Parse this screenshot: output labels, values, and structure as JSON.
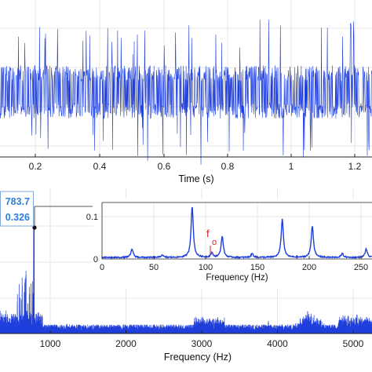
{
  "colors": {
    "signal": "#1f3fdc",
    "annotation": "#d62020",
    "datatip": "#2f7fd6",
    "grid": "#e6e6e6"
  },
  "chart_data": [
    {
      "type": "line",
      "subject": "time-domain signal",
      "xlabel": "Time (s)",
      "ylabel": "",
      "xlim": [
        0.0,
        1.3
      ],
      "xticks": [
        "0.2",
        "0.4",
        "0.6",
        "0.8",
        "1",
        "1.2"
      ],
      "grid": true,
      "series": [
        {
          "envelope": "noise-like, roughly constant amplitude across whole time span"
        }
      ]
    },
    {
      "type": "line",
      "subject": "amplitude spectrum",
      "xlabel": "Frequency (Hz)",
      "xlim": [
        0,
        5300
      ],
      "xticks": [
        "1000",
        "2000",
        "3000",
        "4000",
        "5000"
      ],
      "grid": true,
      "datatip": {
        "x": "783.7",
        "y": "0.326"
      },
      "peaks": [
        {
          "x": 60,
          "y": 0.04
        },
        {
          "x": 300,
          "y": 0.05
        },
        {
          "x": 680,
          "y": 0.2
        },
        {
          "x": 725,
          "y": 0.15
        },
        {
          "x": 783.7,
          "y": 0.326
        },
        {
          "x": 1220,
          "y": 0.03
        },
        {
          "x": 2200,
          "y": 0.03
        },
        {
          "x": 3100,
          "y": 0.05
        },
        {
          "x": 3880,
          "y": 0.04
        },
        {
          "x": 4400,
          "y": 0.07
        },
        {
          "x": 5050,
          "y": 0.06
        }
      ]
    },
    {
      "type": "line",
      "subject": "inset zoom of spectrum",
      "xlabel": "Frequency (Hz)",
      "xlim": [
        0,
        260
      ],
      "ylim": [
        0,
        0.13
      ],
      "xticks": [
        "0",
        "50",
        "100",
        "150",
        "200",
        "250"
      ],
      "yticks": [
        "0",
        "0.1"
      ],
      "annotation": {
        "label": "f",
        "subscript": "o",
        "x": 107
      },
      "peaks": [
        {
          "x": 29,
          "y": 0.02
        },
        {
          "x": 58,
          "y": 0.006
        },
        {
          "x": 87,
          "y": 0.12
        },
        {
          "x": 106,
          "y": 0.01
        },
        {
          "x": 116,
          "y": 0.05
        },
        {
          "x": 145,
          "y": 0.009
        },
        {
          "x": 174,
          "y": 0.09
        },
        {
          "x": 203,
          "y": 0.075
        },
        {
          "x": 232,
          "y": 0.009
        },
        {
          "x": 255,
          "y": 0.02
        }
      ]
    }
  ]
}
